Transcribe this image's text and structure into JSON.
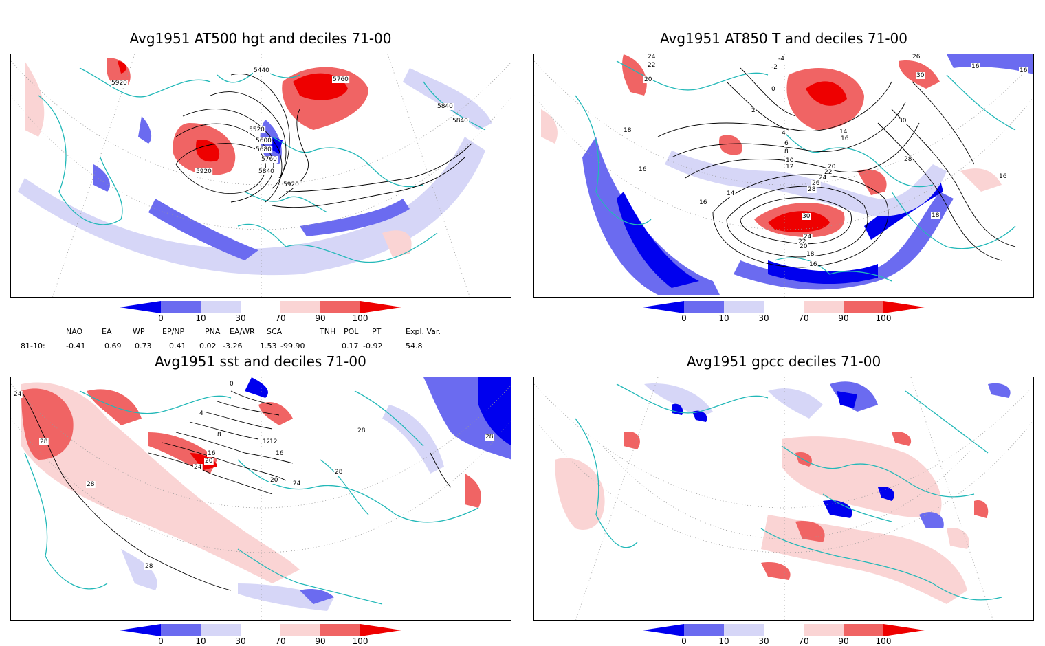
{
  "panels": [
    {
      "title": "Avg1951 AT500 hgt and deciles 71-00",
      "contour_labels": [
        "5920",
        "5440",
        "5760",
        "5840",
        "5840",
        "5520",
        "5600",
        "5680",
        "5760",
        "5840",
        "5920",
        "5920"
      ]
    },
    {
      "title": "Avg1951 AT850 T and deciles 71-00",
      "contour_labels": [
        "24",
        "22",
        "20",
        "-4",
        "-2",
        "0",
        "2",
        "26",
        "30",
        "16",
        "16",
        "18",
        "4",
        "6",
        "8",
        "10",
        "12",
        "14",
        "16",
        "30",
        "28",
        "16",
        "14",
        "16",
        "20",
        "22",
        "24",
        "26",
        "28",
        "30",
        "24",
        "22",
        "20",
        "18",
        "16",
        "16",
        "18"
      ]
    },
    {
      "title": "Avg1951 sst and deciles 71-00",
      "contour_labels": [
        "24",
        "28",
        "28",
        "0",
        "4",
        "8",
        "12",
        "16",
        "20",
        "24",
        "28",
        "28",
        "24",
        "20",
        "16",
        "12",
        "28",
        "28"
      ]
    },
    {
      "title": "Avg1951 gpcc deciles 71-00",
      "contour_labels": []
    }
  ],
  "colorbar": {
    "ticks": [
      "0",
      "10",
      "30",
      "70",
      "90",
      "100"
    ],
    "colors": [
      "#0000ee",
      "#6b6bf0",
      "#d6d6f7",
      "#ffffff",
      "#fad4d4",
      "#f06464",
      "#ee0000"
    ]
  },
  "indices": {
    "headers": [
      "NAO",
      "EA",
      "WP",
      "EP/NP",
      "PNA",
      "EA/WR",
      "SCA",
      "TNH",
      "POL",
      "PT",
      "Expl. Var."
    ],
    "row_label": "81-10:",
    "values": [
      "-0.41",
      "0.69",
      "0.73",
      "0.41",
      "0.02",
      "-3.26",
      "1.53",
      "-99.90",
      "0.17",
      "-0.92",
      "54.8"
    ]
  }
}
